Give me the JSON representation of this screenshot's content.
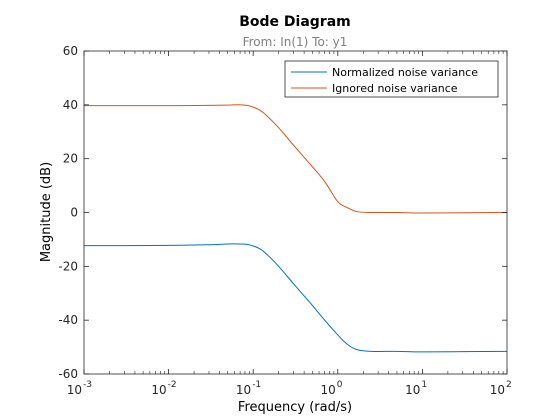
{
  "chart_data": {
    "type": "line",
    "title": "Bode Diagram",
    "subtitle": "From: In(1)  To: y1",
    "xlabel": "Frequency  (rad/s)",
    "ylabel": "Magnitude (dB)",
    "xscale": "log",
    "xlim": [
      0.001,
      100
    ],
    "ylim": [
      -60,
      60
    ],
    "xticks": [
      {
        "base": "10",
        "exp": "-3",
        "value": 0.001
      },
      {
        "base": "10",
        "exp": "-2",
        "value": 0.01
      },
      {
        "base": "10",
        "exp": "-1",
        "value": 0.1
      },
      {
        "base": "10",
        "exp": "0",
        "value": 1
      },
      {
        "base": "10",
        "exp": "1",
        "value": 10
      },
      {
        "base": "10",
        "exp": "2",
        "value": 100
      }
    ],
    "yticks": [
      "60",
      "40",
      "20",
      "0",
      "-20",
      "-40",
      "-60"
    ],
    "legend_position": "top-right",
    "grid": false,
    "series": [
      {
        "name": "Normalized noise variance",
        "color": "#0072BD",
        "x": [
          0.001,
          0.003,
          0.01,
          0.03,
          0.05,
          0.07,
          0.09,
          0.12,
          0.15,
          0.2,
          0.3,
          0.4,
          0.5,
          0.7,
          1.0,
          1.3,
          1.7,
          2.5,
          5,
          10,
          30,
          100
        ],
        "y": [
          -12.3,
          -12.3,
          -12.2,
          -12.0,
          -11.7,
          -11.7,
          -12.0,
          -13.5,
          -16.0,
          -20.0,
          -26.5,
          -31.0,
          -34.5,
          -40.0,
          -45.5,
          -49.0,
          -51.0,
          -51.6,
          -51.6,
          -51.8,
          -51.7,
          -51.6
        ]
      },
      {
        "name": "Ignored noise variance",
        "color": "#D95319",
        "x": [
          0.001,
          0.003,
          0.01,
          0.03,
          0.05,
          0.07,
          0.09,
          0.12,
          0.15,
          0.2,
          0.3,
          0.4,
          0.5,
          0.7,
          1.0,
          1.3,
          1.7,
          2.5,
          5,
          10,
          30,
          100
        ],
        "y": [
          39.7,
          39.7,
          39.7,
          39.8,
          39.9,
          40.0,
          39.6,
          38.0,
          35.5,
          31.5,
          25.0,
          20.5,
          17.0,
          11.5,
          4.0,
          1.8,
          0.3,
          0.0,
          0.0,
          -0.2,
          -0.1,
          0.0
        ]
      }
    ]
  }
}
